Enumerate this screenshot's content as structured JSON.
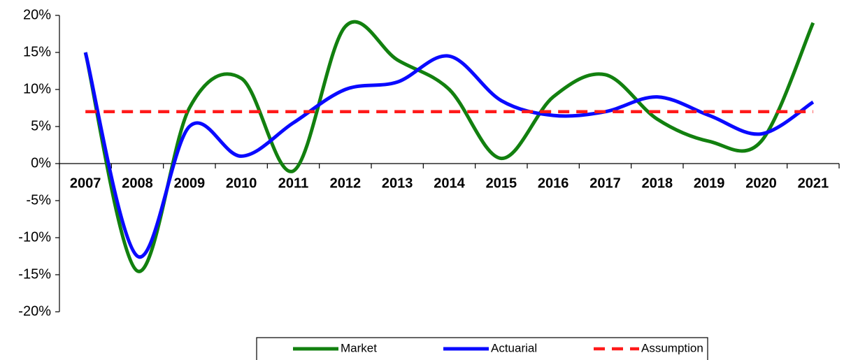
{
  "chart_data": {
    "type": "line",
    "smooth": true,
    "categories": [
      "2007",
      "2008",
      "2009",
      "2010",
      "2011",
      "2012",
      "2013",
      "2014",
      "2015",
      "2016",
      "2017",
      "2018",
      "2019",
      "2020",
      "2021"
    ],
    "series": [
      {
        "name": "Market",
        "color": "#12800f",
        "style": "solid",
        "values": [
          15,
          -14.5,
          7.5,
          11.5,
          -1,
          18.5,
          14,
          10,
          0.7,
          9,
          12,
          6,
          3,
          3,
          19
        ]
      },
      {
        "name": "Actuarial",
        "color": "#0a0aff",
        "style": "solid",
        "values": [
          15,
          -12.5,
          5,
          1,
          5.5,
          10,
          11,
          14.5,
          8.5,
          6.5,
          7,
          9,
          6.5,
          4,
          8.3
        ]
      },
      {
        "name": "Assumption",
        "color": "#ff1a1a",
        "style": "dashed",
        "values": [
          7,
          7,
          7,
          7,
          7,
          7,
          7,
          7,
          7,
          7,
          7,
          7,
          7,
          7,
          7
        ]
      }
    ],
    "ylim": [
      -20,
      20
    ],
    "yticks": [
      {
        "value": -20,
        "label": "-20%"
      },
      {
        "value": -15,
        "label": "-15%"
      },
      {
        "value": -10,
        "label": "-10%"
      },
      {
        "value": -5,
        "label": "-5%"
      },
      {
        "value": 0,
        "label": "0%"
      },
      {
        "value": 5,
        "label": "5%"
      },
      {
        "value": 10,
        "label": "10%"
      },
      {
        "value": 15,
        "label": "15%"
      },
      {
        "value": 20,
        "label": "20%"
      }
    ],
    "legend": "bottom"
  }
}
